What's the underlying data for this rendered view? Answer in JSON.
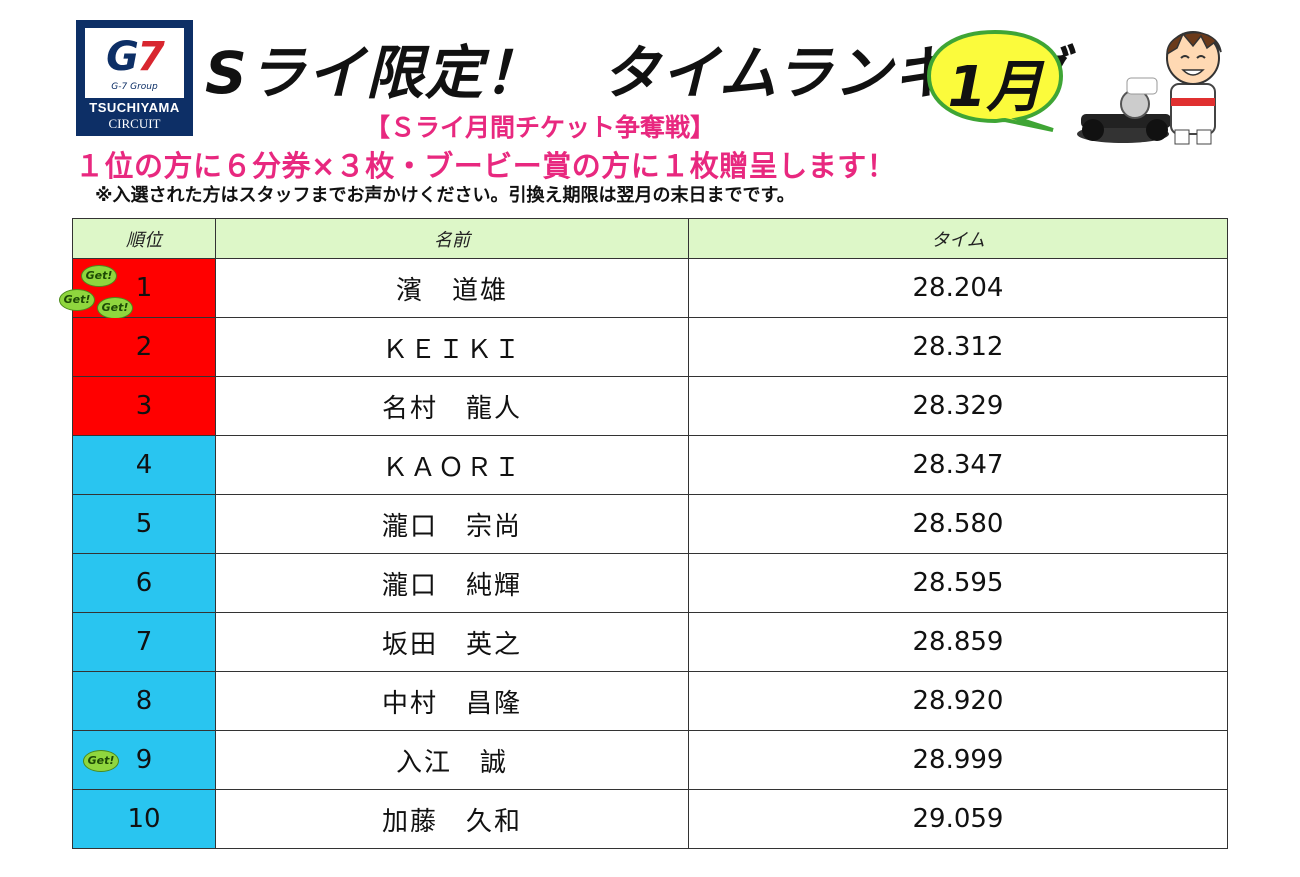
{
  "logo": {
    "brand": "G7",
    "group": "G-7 Group",
    "name": "TSUCHIYAMA",
    "sub": "CIRCUIT"
  },
  "title": "Sライ限定！　タイムランキング",
  "month": "1月",
  "subtitle": "【Ｓライ月間チケット争奪戦】",
  "prize": "１位の方に６分券×３枚・ブービー賞の方に１枚贈呈します！",
  "note": "※入選された方はスタッフまでお声かけください。引換え期限は翌月の末日までです。",
  "table": {
    "headers": [
      "順位",
      "名前",
      "タイム"
    ],
    "rows": [
      {
        "rank": "1",
        "name": "濱　道雄",
        "time": "28.204",
        "group": "red"
      },
      {
        "rank": "2",
        "name": "ＫＥＩＫＩ",
        "time": "28.312",
        "group": "red"
      },
      {
        "rank": "3",
        "name": "名村　龍人",
        "time": "28.329",
        "group": "red"
      },
      {
        "rank": "4",
        "name": "ＫＡＯＲＩ",
        "time": "28.347",
        "group": "blue"
      },
      {
        "rank": "5",
        "name": "瀧口　宗尚",
        "time": "28.580",
        "group": "blue"
      },
      {
        "rank": "6",
        "name": "瀧口　純輝",
        "time": "28.595",
        "group": "blue"
      },
      {
        "rank": "7",
        "name": "坂田　英之",
        "time": "28.859",
        "group": "blue"
      },
      {
        "rank": "8",
        "name": "中村　昌隆",
        "time": "28.920",
        "group": "blue"
      },
      {
        "rank": "9",
        "name": "入江　誠",
        "time": "28.999",
        "group": "blue"
      },
      {
        "rank": "10",
        "name": "加藤　久和",
        "time": "29.059",
        "group": "blue"
      }
    ]
  },
  "badges": {
    "get_label": "Get!"
  },
  "colors": {
    "top_three": "#ff0000",
    "others": "#29c5f0",
    "header_bg": "#ddf7c8",
    "pink": "#e8287f",
    "logo_navy": "#0d2f66"
  }
}
